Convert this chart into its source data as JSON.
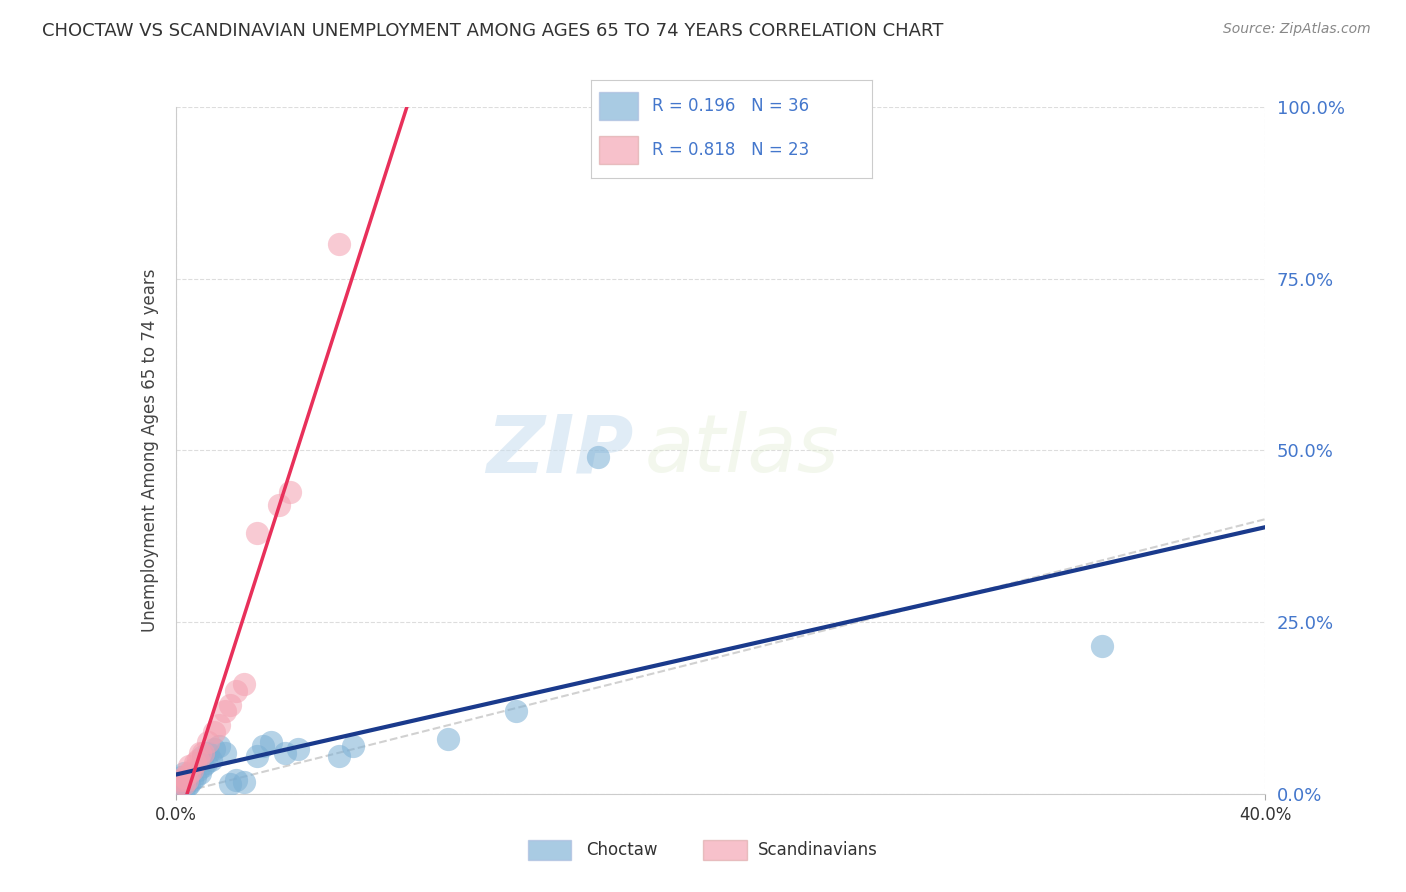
{
  "title": "CHOCTAW VS SCANDINAVIAN UNEMPLOYMENT AMONG AGES 65 TO 74 YEARS CORRELATION CHART",
  "source": "Source: ZipAtlas.com",
  "ylabel": "Unemployment Among Ages 65 to 74 years",
  "ytick_labels": [
    "0.0%",
    "25.0%",
    "50.0%",
    "75.0%",
    "100.0%"
  ],
  "ytick_values": [
    0.0,
    0.25,
    0.5,
    0.75,
    1.0
  ],
  "xmin": 0.0,
  "xmax": 0.4,
  "ymin": 0.0,
  "ymax": 1.0,
  "choctaw_color": "#7BAFD4",
  "scandinavian_color": "#F4A0B0",
  "choctaw_line_color": "#1A3A8C",
  "scandinavian_line_color": "#E8305A",
  "diagonal_color": "#CCCCCC",
  "choctaw_R": 0.196,
  "choctaw_N": 36,
  "scandinavian_R": 0.818,
  "scandinavian_N": 23,
  "legend_text_color": "#4477CC",
  "choctaw_x": [
    0.001,
    0.002,
    0.002,
    0.003,
    0.003,
    0.003,
    0.004,
    0.004,
    0.005,
    0.005,
    0.006,
    0.007,
    0.008,
    0.009,
    0.01,
    0.01,
    0.011,
    0.012,
    0.013,
    0.014,
    0.016,
    0.018,
    0.02,
    0.022,
    0.025,
    0.03,
    0.032,
    0.035,
    0.04,
    0.045,
    0.06,
    0.065,
    0.1,
    0.125,
    0.155,
    0.34
  ],
  "choctaw_y": [
    0.01,
    0.015,
    0.025,
    0.008,
    0.018,
    0.03,
    0.012,
    0.022,
    0.015,
    0.028,
    0.02,
    0.025,
    0.035,
    0.03,
    0.04,
    0.055,
    0.045,
    0.06,
    0.05,
    0.065,
    0.07,
    0.06,
    0.015,
    0.02,
    0.018,
    0.055,
    0.07,
    0.075,
    0.06,
    0.065,
    0.055,
    0.07,
    0.08,
    0.12,
    0.49,
    0.215
  ],
  "scandinavian_x": [
    0.001,
    0.002,
    0.003,
    0.003,
    0.004,
    0.005,
    0.005,
    0.006,
    0.007,
    0.008,
    0.009,
    0.01,
    0.012,
    0.014,
    0.016,
    0.018,
    0.02,
    0.022,
    0.025,
    0.03,
    0.038,
    0.042,
    0.06
  ],
  "scandinavian_y": [
    0.015,
    0.02,
    0.015,
    0.025,
    0.02,
    0.03,
    0.04,
    0.035,
    0.045,
    0.05,
    0.06,
    0.06,
    0.075,
    0.09,
    0.1,
    0.12,
    0.13,
    0.15,
    0.16,
    0.38,
    0.42,
    0.44,
    0.8
  ],
  "watermark_zip": "ZIP",
  "watermark_atlas": "atlas",
  "background_color": "#FFFFFF",
  "grid_color": "#DDDDDD"
}
